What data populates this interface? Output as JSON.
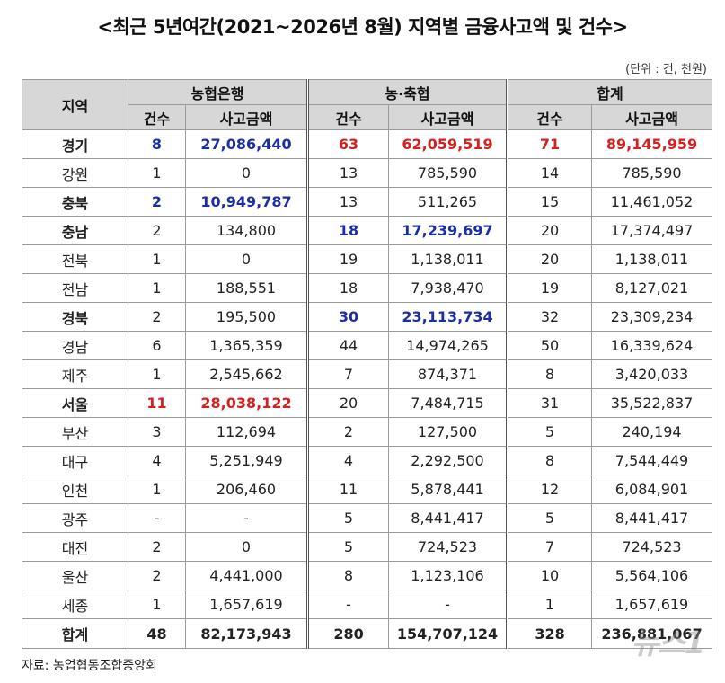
{
  "title": "<최근 5년여간(2021~2026년 8월) 지역별 금융사고액 및 건수>",
  "unit": "(단위 : 건, 천원)",
  "headers": {
    "region": "지역",
    "groups": [
      "농협은행",
      "농·축협",
      "합계"
    ],
    "count": "건수",
    "amount": "사고금액"
  },
  "rows": [
    {
      "region": "경기",
      "c1": "8",
      "a1": "27,086,440",
      "c2": "63",
      "a2": "62,059,519",
      "c3": "71",
      "a3": "89,145,959"
    },
    {
      "region": "강원",
      "c1": "1",
      "a1": "0",
      "c2": "13",
      "a2": "785,590",
      "c3": "14",
      "a3": "785,590"
    },
    {
      "region": "충북",
      "c1": "2",
      "a1": "10,949,787",
      "c2": "13",
      "a2": "511,265",
      "c3": "15",
      "a3": "11,461,052"
    },
    {
      "region": "충남",
      "c1": "2",
      "a1": "134,800",
      "c2": "18",
      "a2": "17,239,697",
      "c3": "20",
      "a3": "17,374,497"
    },
    {
      "region": "전북",
      "c1": "1",
      "a1": "0",
      "c2": "19",
      "a2": "1,138,011",
      "c3": "20",
      "a3": "1,138,011"
    },
    {
      "region": "전남",
      "c1": "1",
      "a1": "188,551",
      "c2": "18",
      "a2": "7,938,470",
      "c3": "19",
      "a3": "8,127,021"
    },
    {
      "region": "경북",
      "c1": "2",
      "a1": "195,500",
      "c2": "30",
      "a2": "23,113,734",
      "c3": "32",
      "a3": "23,309,234"
    },
    {
      "region": "경남",
      "c1": "6",
      "a1": "1,365,359",
      "c2": "44",
      "a2": "14,974,265",
      "c3": "50",
      "a3": "16,339,624"
    },
    {
      "region": "제주",
      "c1": "1",
      "a1": "2,545,662",
      "c2": "7",
      "a2": "874,371",
      "c3": "8",
      "a3": "3,420,033"
    },
    {
      "region": "서울",
      "c1": "11",
      "a1": "28,038,122",
      "c2": "20",
      "a2": "7,484,715",
      "c3": "31",
      "a3": "35,522,837"
    },
    {
      "region": "부산",
      "c1": "3",
      "a1": "112,694",
      "c2": "2",
      "a2": "127,500",
      "c3": "5",
      "a3": "240,194"
    },
    {
      "region": "대구",
      "c1": "4",
      "a1": "5,251,949",
      "c2": "4",
      "a2": "2,292,500",
      "c3": "8",
      "a3": "7,544,449"
    },
    {
      "region": "인천",
      "c1": "1",
      "a1": "206,460",
      "c2": "11",
      "a2": "5,878,441",
      "c3": "12",
      "a3": "6,084,901"
    },
    {
      "region": "광주",
      "c1": "-",
      "a1": "-",
      "c2": "5",
      "a2": "8,441,417",
      "c3": "5",
      "a3": "8,441,417"
    },
    {
      "region": "대전",
      "c1": "2",
      "a1": "0",
      "c2": "5",
      "a2": "724,523",
      "c3": "7",
      "a3": "724,523"
    },
    {
      "region": "울산",
      "c1": "2",
      "a1": "4,441,000",
      "c2": "8",
      "a2": "1,123,106",
      "c3": "10",
      "a3": "5,564,106"
    },
    {
      "region": "세종",
      "c1": "1",
      "a1": "1,657,619",
      "c2": "-",
      "a2": "-",
      "c3": "1",
      "a3": "1,657,619"
    }
  ],
  "total": {
    "region": "합계",
    "c1": "48",
    "a1": "82,173,943",
    "c2": "280",
    "a2": "154,707,124",
    "c3": "328",
    "a3": "236,881,067"
  },
  "highlights": {
    "0": {
      "c1": "blue",
      "a1": "blue",
      "c2": "red",
      "a2": "red",
      "c3": "red",
      "a3": "red",
      "region": "bold"
    },
    "2": {
      "c1": "blue",
      "a1": "blue",
      "region": "bold"
    },
    "3": {
      "c2": "blue",
      "a2": "blue",
      "region": "bold"
    },
    "6": {
      "c2": "blue",
      "a2": "blue",
      "region": "bold"
    },
    "9": {
      "c1": "red",
      "a1": "red",
      "region": "bold"
    }
  },
  "colors": {
    "blue": "#1b2ea3",
    "red": "#d42020",
    "header_bg": "#d7d7d7"
  },
  "source": "자료: 농업협동조합중앙회",
  "watermark": "뉴스1"
}
